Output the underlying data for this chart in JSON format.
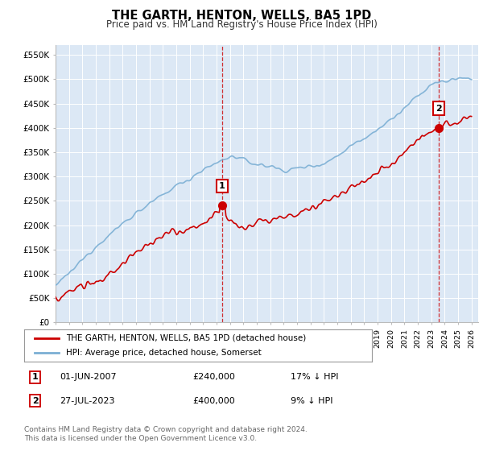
{
  "title": "THE GARTH, HENTON, WELLS, BA5 1PD",
  "subtitle": "Price paid vs. HM Land Registry's House Price Index (HPI)",
  "ylim": [
    0,
    570000
  ],
  "yticks": [
    0,
    50000,
    100000,
    150000,
    200000,
    250000,
    300000,
    350000,
    400000,
    450000,
    500000,
    550000
  ],
  "ytick_labels": [
    "£0",
    "£50K",
    "£100K",
    "£150K",
    "£200K",
    "£250K",
    "£300K",
    "£350K",
    "£400K",
    "£450K",
    "£500K",
    "£550K"
  ],
  "sale1_date": 2007.42,
  "sale1_price": 240000,
  "sale2_date": 2023.57,
  "sale2_price": 400000,
  "hpi_color": "#7bafd4",
  "price_color": "#cc0000",
  "background_color": "#ffffff",
  "plot_bg_color": "#dce8f5",
  "legend_house": "THE GARTH, HENTON, WELLS, BA5 1PD (detached house)",
  "legend_hpi": "HPI: Average price, detached house, Somerset",
  "footnote": "Contains HM Land Registry data © Crown copyright and database right 2024.\nThis data is licensed under the Open Government Licence v3.0."
}
